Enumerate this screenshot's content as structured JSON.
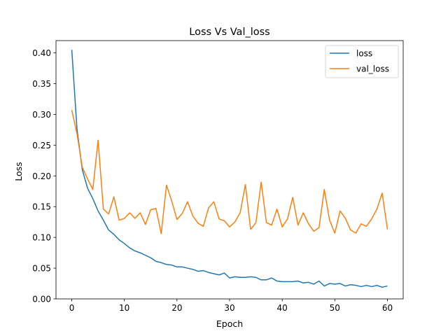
{
  "chart_data": {
    "type": "line",
    "title": "Loss Vs Val_loss",
    "xlabel": "Epoch",
    "ylabel": "Loss",
    "xlim": [
      -3,
      63
    ],
    "ylim": [
      0.0,
      0.42
    ],
    "x_ticks": [
      0,
      10,
      20,
      30,
      40,
      50,
      60
    ],
    "y_ticks": [
      0.0,
      0.05,
      0.1,
      0.15,
      0.2,
      0.25,
      0.3,
      0.35,
      0.4
    ],
    "grid": false,
    "legend_position": "top-right",
    "x": [
      0,
      1,
      2,
      3,
      4,
      5,
      6,
      7,
      8,
      9,
      10,
      11,
      12,
      13,
      14,
      15,
      16,
      17,
      18,
      19,
      20,
      21,
      22,
      23,
      24,
      25,
      26,
      27,
      28,
      29,
      30,
      31,
      32,
      33,
      34,
      35,
      36,
      37,
      38,
      39,
      40,
      41,
      42,
      43,
      44,
      45,
      46,
      47,
      48,
      49,
      50,
      51,
      52,
      53,
      54,
      55,
      56,
      57,
      58,
      59,
      60
    ],
    "series": [
      {
        "name": "loss",
        "color": "#1f77b4",
        "values": [
          0.405,
          0.275,
          0.21,
          0.18,
          0.163,
          0.143,
          0.128,
          0.112,
          0.105,
          0.096,
          0.09,
          0.083,
          0.078,
          0.075,
          0.071,
          0.067,
          0.061,
          0.059,
          0.056,
          0.055,
          0.052,
          0.052,
          0.05,
          0.048,
          0.045,
          0.046,
          0.043,
          0.041,
          0.039,
          0.042,
          0.034,
          0.036,
          0.035,
          0.035,
          0.036,
          0.035,
          0.031,
          0.031,
          0.034,
          0.029,
          0.028,
          0.028,
          0.028,
          0.029,
          0.026,
          0.027,
          0.024,
          0.029,
          0.021,
          0.025,
          0.024,
          0.025,
          0.021,
          0.023,
          0.022,
          0.02,
          0.022,
          0.02,
          0.022,
          0.019,
          0.021
        ]
      },
      {
        "name": "val_loss",
        "color": "#ff7f0e",
        "values": [
          0.307,
          0.268,
          0.214,
          0.195,
          0.178,
          0.258,
          0.146,
          0.138,
          0.166,
          0.128,
          0.131,
          0.14,
          0.131,
          0.14,
          0.121,
          0.145,
          0.147,
          0.106,
          0.185,
          0.159,
          0.129,
          0.139,
          0.158,
          0.135,
          0.123,
          0.118,
          0.148,
          0.158,
          0.13,
          0.127,
          0.117,
          0.125,
          0.14,
          0.186,
          0.113,
          0.124,
          0.19,
          0.124,
          0.12,
          0.146,
          0.117,
          0.13,
          0.165,
          0.12,
          0.14,
          0.122,
          0.11,
          0.116,
          0.178,
          0.128,
          0.107,
          0.143,
          0.131,
          0.112,
          0.107,
          0.122,
          0.118,
          0.13,
          0.146,
          0.172,
          0.113
        ]
      }
    ]
  }
}
